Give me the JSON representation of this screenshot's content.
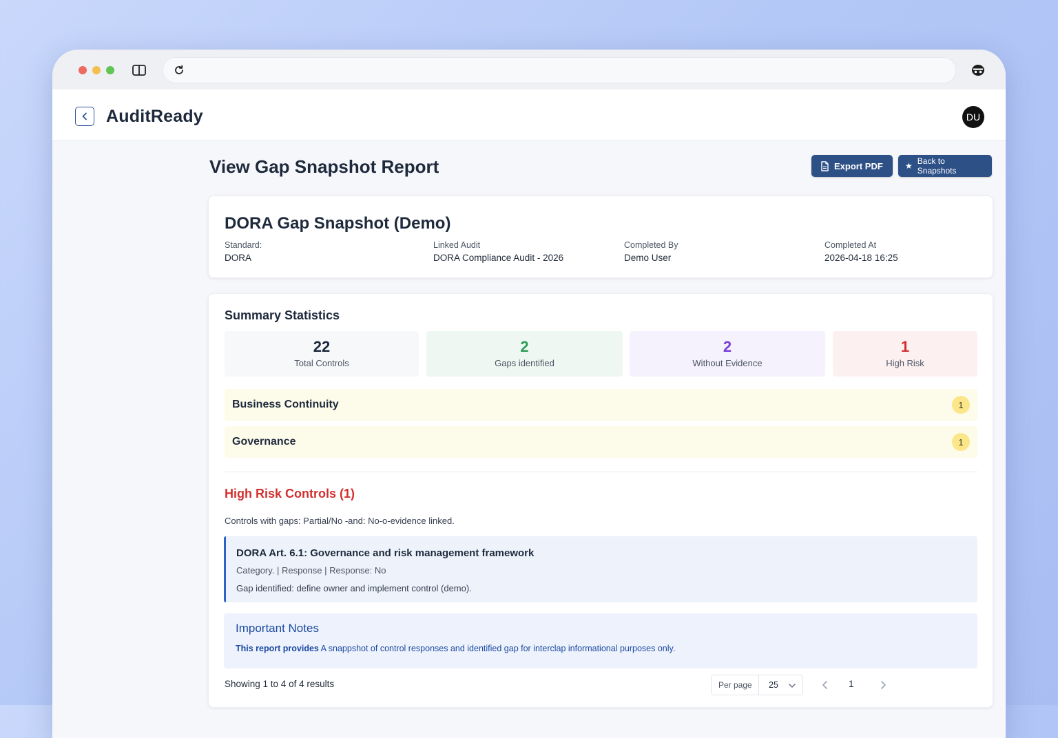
{
  "browser": {
    "url": ""
  },
  "header": {
    "app_name": "AuditReady",
    "avatar_initials": "DU"
  },
  "page": {
    "title": "View Gap Snapshot Report",
    "export_label": "Export PDF",
    "back_label": "Back to Snapshots"
  },
  "report": {
    "title": "DORA Gap Snapshot (Demo)",
    "meta": [
      {
        "label": "Standard:",
        "value": "DORA"
      },
      {
        "label": "Linked Audit",
        "value": "DORA Compliance Audit - 2026"
      },
      {
        "label": "Completed By",
        "value": "Demo User"
      },
      {
        "label": "Completed At",
        "value": "2026-04-18 16:25"
      }
    ]
  },
  "summary": {
    "title": "Summary Statistics",
    "stats": [
      {
        "value": "22",
        "label": "Total Controls",
        "color": "#1e2a3c",
        "bg": "#f7f8fa"
      },
      {
        "value": "2",
        "label": "Gaps identified",
        "color": "#2e9e57",
        "bg": "#eef7f1"
      },
      {
        "value": "2",
        "label": "Without Evidence",
        "color": "#7a3fd6",
        "bg": "#f5f1fd"
      },
      {
        "value": "1",
        "label": "High Risk",
        "color": "#d32f2f",
        "bg": "#fdf0f1"
      }
    ],
    "categories": [
      {
        "name": "Business Continuity",
        "count": "1"
      },
      {
        "name": "Governance",
        "count": "1"
      }
    ]
  },
  "high_risk": {
    "title": "High Risk Controls (1)",
    "description": "Controls with gaps: Partial/No -and: No-o-evidence linked.",
    "controls": [
      {
        "title": "DORA Art. 6.1: Governance and risk management framework",
        "meta": "Category. | Response | Response: No",
        "gap": "Gap identified: define owner and implement control (demo)."
      }
    ]
  },
  "notes": {
    "title": "Important Notes",
    "lead": "This report provides",
    "text": " A snappshot of control responses and identified gap for interclap informational purposes only."
  },
  "pagination": {
    "showing": "Showing 1 to 4 of 4 results",
    "per_page_label": "Per page",
    "per_page_value": "25",
    "current_page": "1"
  },
  "colors": {
    "primary": "#2d5087",
    "danger": "#d32f2f",
    "info": "#1d4aa0"
  }
}
